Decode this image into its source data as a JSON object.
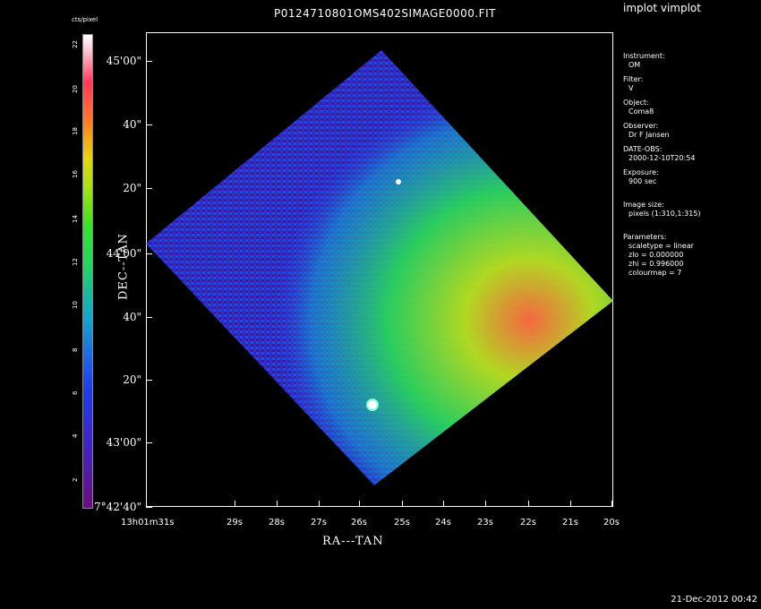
{
  "app_title": "implot vimplot",
  "image_title": "P0124710801OMS402SIMAGE0000.FIT",
  "footer_timestamp": "21-Dec-2012 00:42",
  "colorbar": {
    "title": "cts/pixel",
    "labels": [
      "2",
      "4",
      "6",
      "8",
      "10",
      "12",
      "14",
      "16",
      "18",
      "20",
      "22"
    ]
  },
  "axes": {
    "x_title": "RA---TAN",
    "y_title": "DEC--TAN",
    "x_ticks": [
      "13h01m31s",
      "29s",
      "28s",
      "27s",
      "26s",
      "25s",
      "24s",
      "23s",
      "22s",
      "21s",
      "20s"
    ],
    "y_ticks": [
      "7°42'40\"",
      "43'00\"",
      "20\"",
      "40\"",
      "44'00\"",
      "20\"",
      "40\"",
      "45'00\""
    ]
  },
  "info": {
    "instrument_label": "Instrument:",
    "instrument": "OM",
    "filter_label": "Filter:",
    "filter": "V",
    "object_label": "Object:",
    "object": "Coma8",
    "observer_label": "Observer:",
    "observer": "Dr F Jansen",
    "dateobs_label": "DATE-OBS:",
    "dateobs": "2000-12-10T20:54",
    "exposure_label": "Exposure:",
    "exposure": "900 sec",
    "imgsize_label": "Image size:",
    "imgsize": "pixels (1:310,1:315)",
    "params_label": "Parameters:",
    "scaletype": "scaletype = linear",
    "zlo": "zlo = 0.000000",
    "zhi": "zhi = 0.996000",
    "colourmap": "colourmap =   7"
  }
}
